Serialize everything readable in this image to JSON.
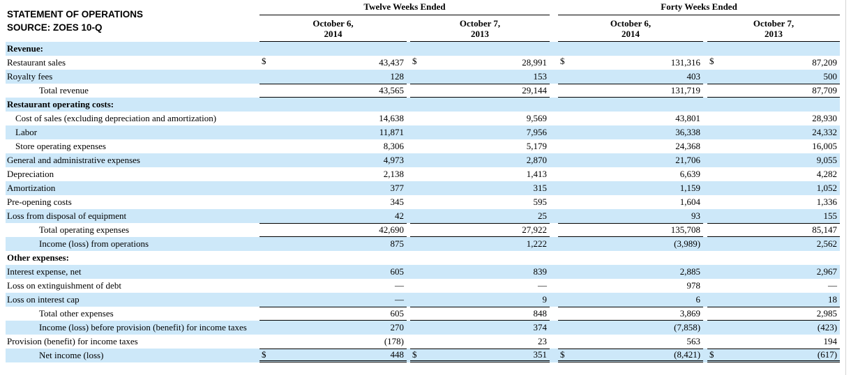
{
  "title": {
    "line1": "STATEMENT OF OPERATIONS",
    "line2": "SOURCE: ZOES 10-Q"
  },
  "table": {
    "header": {
      "groups": [
        {
          "label": "Twelve Weeks Ended",
          "columns": [
            {
              "line1": "October 6,",
              "line2": "2014"
            },
            {
              "line1": "October 7,",
              "line2": "2013"
            }
          ]
        },
        {
          "label": "Forty Weeks Ended",
          "columns": [
            {
              "line1": "October 6,",
              "line2": "2014"
            },
            {
              "line1": "October 7,",
              "line2": "2013"
            }
          ]
        }
      ]
    },
    "rows": [
      {
        "label": "Revenue:",
        "style": "section",
        "shaded": true,
        "values": null
      },
      {
        "label": "Restaurant sales",
        "style": "item",
        "shaded": false,
        "dollar": true,
        "values": [
          "43,437",
          "28,991",
          "131,316",
          "87,209"
        ]
      },
      {
        "label": "Royalty fees",
        "style": "item",
        "shaded": true,
        "values": [
          "128",
          "153",
          "403",
          "500"
        ]
      },
      {
        "label": "Total revenue",
        "style": "total",
        "shaded": false,
        "rule": "top-bottom",
        "values": [
          "43,565",
          "29,144",
          "131,719",
          "87,709"
        ]
      },
      {
        "label": "Restaurant operating costs:",
        "style": "section",
        "shaded": true,
        "values": null
      },
      {
        "label": "Cost of sales (excluding depreciation and amortization)",
        "style": "item-indent",
        "shaded": false,
        "values": [
          "14,638",
          "9,569",
          "43,801",
          "28,930"
        ]
      },
      {
        "label": "Labor",
        "style": "item-indent",
        "shaded": true,
        "values": [
          "11,871",
          "7,956",
          "36,338",
          "24,332"
        ]
      },
      {
        "label": "Store operating expenses",
        "style": "item-indent",
        "shaded": false,
        "values": [
          "8,306",
          "5,179",
          "24,368",
          "16,005"
        ]
      },
      {
        "label": "General and administrative expenses",
        "style": "item",
        "shaded": true,
        "values": [
          "4,973",
          "2,870",
          "21,706",
          "9,055"
        ]
      },
      {
        "label": "Depreciation",
        "style": "item",
        "shaded": false,
        "values": [
          "2,138",
          "1,413",
          "6,639",
          "4,282"
        ]
      },
      {
        "label": "Amortization",
        "style": "item",
        "shaded": true,
        "values": [
          "377",
          "315",
          "1,159",
          "1,052"
        ]
      },
      {
        "label": "Pre-opening costs",
        "style": "item",
        "shaded": false,
        "values": [
          "345",
          "595",
          "1,604",
          "1,336"
        ]
      },
      {
        "label": "Loss from disposal of equipment",
        "style": "item",
        "shaded": true,
        "values": [
          "42",
          "25",
          "93",
          "155"
        ]
      },
      {
        "label": "Total operating expenses",
        "style": "total",
        "shaded": false,
        "rule": "top-bottom",
        "values": [
          "42,690",
          "27,922",
          "135,708",
          "85,147"
        ]
      },
      {
        "label": "Income (loss) from operations",
        "style": "total",
        "shaded": true,
        "values": [
          "875",
          "1,222",
          "(3,989)",
          "2,562"
        ]
      },
      {
        "label": "Other expenses:",
        "style": "section",
        "shaded": false,
        "values": null
      },
      {
        "label": "Interest expense, net",
        "style": "item",
        "shaded": true,
        "values": [
          "605",
          "839",
          "2,885",
          "2,967"
        ]
      },
      {
        "label": "Loss on extinguishment of debt",
        "style": "item",
        "shaded": false,
        "values": [
          "—",
          "—",
          "978",
          "—"
        ]
      },
      {
        "label": "Loss on interest cap",
        "style": "item",
        "shaded": true,
        "values": [
          "—",
          "9",
          "6",
          "18"
        ]
      },
      {
        "label": "Total other expenses",
        "style": "total",
        "shaded": false,
        "rule": "top-bottom",
        "values": [
          "605",
          "848",
          "3,869",
          "2,985"
        ]
      },
      {
        "label": "Income (loss) before provision (benefit) for income taxes",
        "style": "total",
        "shaded": true,
        "values": [
          "270",
          "374",
          "(7,858)",
          "(423)"
        ]
      },
      {
        "label": "Provision (benefit) for income taxes",
        "style": "item",
        "shaded": false,
        "values": [
          "(178)",
          "23",
          "563",
          "194"
        ]
      },
      {
        "label": "Net income (loss)",
        "style": "total",
        "shaded": true,
        "dollar": true,
        "rule": "top-double",
        "values": [
          "448",
          "351",
          "(8,421)",
          "(617)"
        ]
      }
    ]
  },
  "colors": {
    "row_shade": "#cde8f9",
    "rule": "#000000",
    "text": "#000000",
    "page_edge_line": "#d4d4d4"
  }
}
